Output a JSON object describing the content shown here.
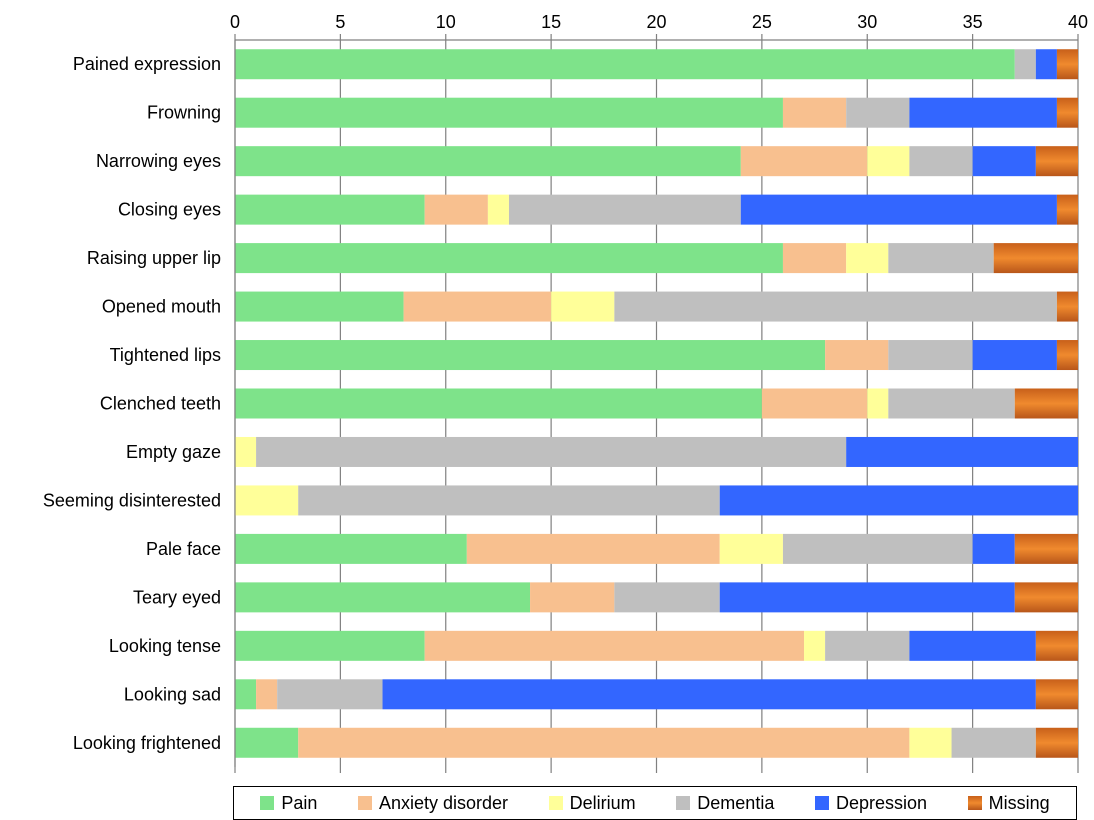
{
  "chart_data": {
    "type": "bar",
    "orientation": "horizontal",
    "stacked": true,
    "xlim": [
      0,
      40
    ],
    "xticks": [
      0,
      5,
      10,
      15,
      20,
      25,
      30,
      35,
      40
    ],
    "x_axis_position": "top",
    "grid": true,
    "legend_position": "bottom",
    "categories": [
      "Pained expression",
      "Frowning",
      "Narrowing eyes",
      "Closing eyes",
      "Raising upper lip",
      "Opened mouth",
      "Tightened lips",
      "Clenched teeth",
      "Empty gaze",
      "Seeming disinterested",
      "Pale face",
      "Teary eyed",
      "Looking tense",
      "Looking sad",
      "Looking frightened"
    ],
    "series": [
      {
        "name": "Pain",
        "color": "#7ee38a",
        "values": [
          37,
          26,
          24,
          9,
          26,
          8,
          28,
          25,
          0,
          0,
          11,
          14,
          9,
          1,
          3
        ]
      },
      {
        "name": "Anxiety disorder",
        "color": "#f8c08f",
        "values": [
          0,
          3,
          6,
          3,
          3,
          7,
          3,
          5,
          0,
          0,
          12,
          4,
          18,
          1,
          29
        ]
      },
      {
        "name": "Delirium",
        "color": "#ffff99",
        "values": [
          0,
          0,
          2,
          1,
          2,
          3,
          0,
          1,
          1,
          3,
          3,
          0,
          1,
          0,
          2
        ]
      },
      {
        "name": "Dementia",
        "color": "#bfbfbf",
        "values": [
          1,
          3,
          3,
          11,
          5,
          21,
          4,
          6,
          28,
          20,
          9,
          5,
          4,
          5,
          4
        ]
      },
      {
        "name": "Depression",
        "color": "#3366ff",
        "values": [
          1,
          7,
          3,
          15,
          0,
          0,
          4,
          0,
          11,
          17,
          2,
          14,
          6,
          31,
          0
        ]
      },
      {
        "name": "Missing",
        "color": "#d9731f",
        "values": [
          1,
          1,
          2,
          1,
          4,
          1,
          1,
          3,
          0,
          0,
          3,
          3,
          2,
          2,
          2
        ]
      }
    ]
  }
}
